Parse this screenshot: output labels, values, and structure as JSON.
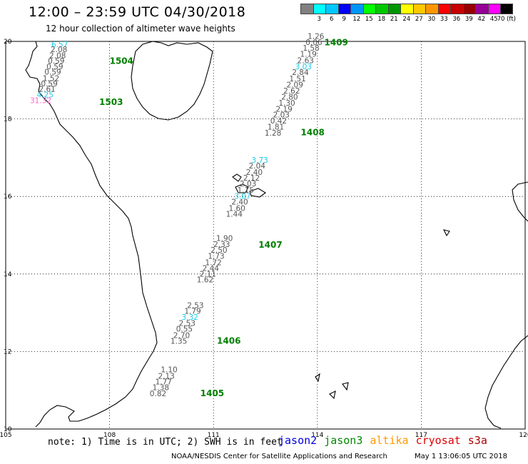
{
  "header": {
    "title": "12:00 – 23:59 UTC 04/30/2018",
    "subtitle": "12 hour collection of altimeter wave heights"
  },
  "legend": {
    "unit": "(ft)",
    "items": [
      {
        "label": "",
        "color": "#808080"
      },
      {
        "label": "3",
        "color": "#00ffff"
      },
      {
        "label": "6",
        "color": "#00c8ff"
      },
      {
        "label": "9",
        "color": "#0000ff"
      },
      {
        "label": "12",
        "color": "#0096ff"
      },
      {
        "label": "15",
        "color": "#00ff00"
      },
      {
        "label": "18",
        "color": "#00c800"
      },
      {
        "label": "21",
        "color": "#009600"
      },
      {
        "label": "24",
        "color": "#ffff00"
      },
      {
        "label": "27",
        "color": "#ffc800"
      },
      {
        "label": "30",
        "color": "#ff9600"
      },
      {
        "label": "33",
        "color": "#ff0000"
      },
      {
        "label": "36",
        "color": "#c80000"
      },
      {
        "label": "39",
        "color": "#960000"
      },
      {
        "label": "42",
        "color": "#960096"
      },
      {
        "label": "45",
        "color": "#ff00ff"
      },
      {
        "label": "70",
        "color": "#000000"
      }
    ]
  },
  "map": {
    "lon_ticks": [
      "105",
      "108",
      "111",
      "114",
      "117",
      "120"
    ],
    "lat_ticks": [
      "20",
      "18",
      "16",
      "14",
      "12",
      "10"
    ],
    "colors": {
      "wave_default": "#555555",
      "wave_cyan": "#1fc9e8",
      "wave_pink": "#ff66cc",
      "pass_label": "#008000",
      "coast": "#000000",
      "grid": "#000000"
    }
  },
  "tracks": [
    {
      "points": [
        {
          "lon": 106.8,
          "lat": 19.85,
          "v": "6.57",
          "color": "cyan"
        },
        {
          "lon": 106.78,
          "lat": 19.72,
          "v": "2.08"
        },
        {
          "lon": 106.74,
          "lat": 19.57,
          "v": "2.08"
        },
        {
          "lon": 106.7,
          "lat": 19.43,
          "v": "0.59"
        },
        {
          "lon": 106.66,
          "lat": 19.28,
          "v": "0.59"
        },
        {
          "lon": 106.6,
          "lat": 19.14,
          "v": "0.59"
        },
        {
          "lon": 106.55,
          "lat": 18.98,
          "v": "1.52"
        },
        {
          "lon": 106.5,
          "lat": 18.84,
          "v": "0.59"
        },
        {
          "lon": 106.44,
          "lat": 18.7,
          "v": "2.61"
        },
        {
          "lon": 106.38,
          "lat": 18.55,
          "v": "4.25",
          "color": "cyan"
        },
        {
          "lon": 106.32,
          "lat": 18.41,
          "v": "31.32",
          "color": "pink"
        }
      ]
    },
    {
      "points": [
        {
          "lon": 114.2,
          "lat": 20.06,
          "v": "1.26"
        },
        {
          "lon": 114.14,
          "lat": 19.91,
          "v": "0.06"
        },
        {
          "lon": 114.06,
          "lat": 19.76,
          "v": "1.58"
        },
        {
          "lon": 113.98,
          "lat": 19.6,
          "v": "1.19"
        },
        {
          "lon": 113.9,
          "lat": 19.44,
          "v": "2.63"
        },
        {
          "lon": 113.84,
          "lat": 19.28,
          "v": "3.03",
          "color": "cyan"
        },
        {
          "lon": 113.75,
          "lat": 19.13,
          "v": "2.84"
        },
        {
          "lon": 113.67,
          "lat": 18.97,
          "v": "1.51"
        },
        {
          "lon": 113.59,
          "lat": 18.81,
          "v": "2.09"
        },
        {
          "lon": 113.5,
          "lat": 18.66,
          "v": "2.62"
        },
        {
          "lon": 113.44,
          "lat": 18.5,
          "v": "2.80"
        },
        {
          "lon": 113.36,
          "lat": 18.34,
          "v": "1.30"
        },
        {
          "lon": 113.28,
          "lat": 18.19,
          "v": "2.19"
        },
        {
          "lon": 113.2,
          "lat": 18.04,
          "v": "2.03"
        },
        {
          "lon": 113.12,
          "lat": 17.88,
          "v": "0.42"
        },
        {
          "lon": 113.04,
          "lat": 17.73,
          "v": "1.81"
        },
        {
          "lon": 112.96,
          "lat": 17.57,
          "v": "1.28"
        }
      ]
    },
    {
      "points": [
        {
          "lon": 112.58,
          "lat": 16.87,
          "v": "3.73",
          "color": "cyan"
        },
        {
          "lon": 112.5,
          "lat": 16.72,
          "v": "2.04"
        },
        {
          "lon": 112.42,
          "lat": 16.56,
          "v": "2.40"
        },
        {
          "lon": 112.34,
          "lat": 16.41,
          "v": "2.12"
        },
        {
          "lon": 112.24,
          "lat": 16.26,
          "v": "2.03"
        },
        {
          "lon": 112.17,
          "lat": 16.1,
          "v": "1.15"
        },
        {
          "lon": 112.08,
          "lat": 15.94,
          "v": "3.07",
          "color": "cyan"
        },
        {
          "lon": 112.0,
          "lat": 15.79,
          "v": "2.40"
        },
        {
          "lon": 111.92,
          "lat": 15.63,
          "v": "1.60"
        },
        {
          "lon": 111.84,
          "lat": 15.48,
          "v": "1.44"
        }
      ]
    },
    {
      "points": [
        {
          "lon": 111.56,
          "lat": 14.85,
          "v": "1.90"
        },
        {
          "lon": 111.48,
          "lat": 14.7,
          "v": "2.33"
        },
        {
          "lon": 111.4,
          "lat": 14.55,
          "v": "2.50"
        },
        {
          "lon": 111.32,
          "lat": 14.39,
          "v": "1.73"
        },
        {
          "lon": 111.24,
          "lat": 14.23,
          "v": "1.72"
        },
        {
          "lon": 111.16,
          "lat": 14.08,
          "v": "2.44"
        },
        {
          "lon": 111.08,
          "lat": 13.93,
          "v": "2.11"
        },
        {
          "lon": 111.0,
          "lat": 13.78,
          "v": "1.62"
        }
      ]
    },
    {
      "points": [
        {
          "lon": 110.72,
          "lat": 13.12,
          "v": "2.53"
        },
        {
          "lon": 110.64,
          "lat": 12.97,
          "v": "1.79"
        },
        {
          "lon": 110.56,
          "lat": 12.82,
          "v": "3.32",
          "color": "cyan"
        },
        {
          "lon": 110.48,
          "lat": 12.66,
          "v": "2.53"
        },
        {
          "lon": 110.4,
          "lat": 12.51,
          "v": "0.55"
        },
        {
          "lon": 110.32,
          "lat": 12.35,
          "v": "2.70"
        },
        {
          "lon": 110.24,
          "lat": 12.2,
          "v": "1.35"
        }
      ]
    },
    {
      "points": [
        {
          "lon": 109.96,
          "lat": 11.46,
          "v": "1.10"
        },
        {
          "lon": 109.88,
          "lat": 11.3,
          "v": "2.13"
        },
        {
          "lon": 109.8,
          "lat": 11.15,
          "v": "1.77"
        },
        {
          "lon": 109.72,
          "lat": 11.0,
          "v": "1.38"
        },
        {
          "lon": 109.64,
          "lat": 10.85,
          "v": "0.82"
        }
      ]
    }
  ],
  "passes": [
    {
      "id": "1504",
      "lon": 108.0,
      "lat": 19.42
    },
    {
      "id": "1503",
      "lon": 107.7,
      "lat": 18.36
    },
    {
      "id": "1409",
      "lon": 114.2,
      "lat": 19.9
    },
    {
      "id": "1408",
      "lon": 113.52,
      "lat": 17.58
    },
    {
      "id": "1407",
      "lon": 112.3,
      "lat": 14.68
    },
    {
      "id": "1406",
      "lon": 111.1,
      "lat": 12.2
    },
    {
      "id": "1405",
      "lon": 110.62,
      "lat": 10.85
    }
  ],
  "footer": {
    "note": "note: 1) Time is in UTC; 2) SWH is in feet",
    "satellites": [
      {
        "name": "jason2",
        "color": "#0000dd"
      },
      {
        "name": "jason3",
        "color": "#008800"
      },
      {
        "name": "altika",
        "color": "#ff9900"
      },
      {
        "name": "cryosat",
        "color": "#dd0000"
      },
      {
        "name": "s3a",
        "color": "#aa0000"
      }
    ],
    "credit": "NOAA/NESDIS Center for Satellite Applications and Research",
    "timestamp": "May  1 13:06:05 UTC 2018"
  }
}
